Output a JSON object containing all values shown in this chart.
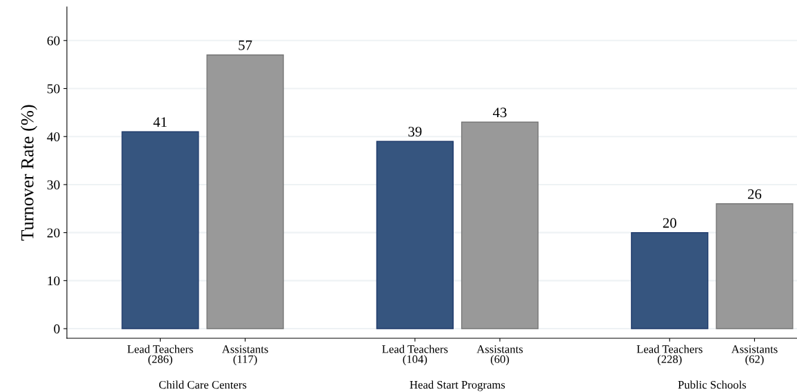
{
  "chart_data": {
    "type": "bar",
    "categories": [
      "Lead Teachers\n(286)",
      "Assistants\n(117)",
      null,
      "Lead Teachers\n(104)",
      "Assistants\n(60)",
      null,
      "Lead Teachers\n(228)",
      "Assistants\n(62)"
    ],
    "values": [
      41,
      57,
      null,
      39,
      43,
      null,
      20,
      26
    ],
    "colors": [
      "#36557f",
      "#999999",
      null,
      "#36557f",
      "#999999",
      null,
      "#36557f",
      "#999999"
    ],
    "ylabel": "Turnover Rate (%)",
    "ylim": [
      -2,
      67
    ],
    "yticks": [
      0,
      10,
      20,
      30,
      40,
      50,
      60
    ],
    "grid": "y",
    "data_labels": true,
    "legend": false,
    "annotations": [
      "Child Care Centers",
      "Head Start Programs",
      "Public Schools"
    ]
  }
}
